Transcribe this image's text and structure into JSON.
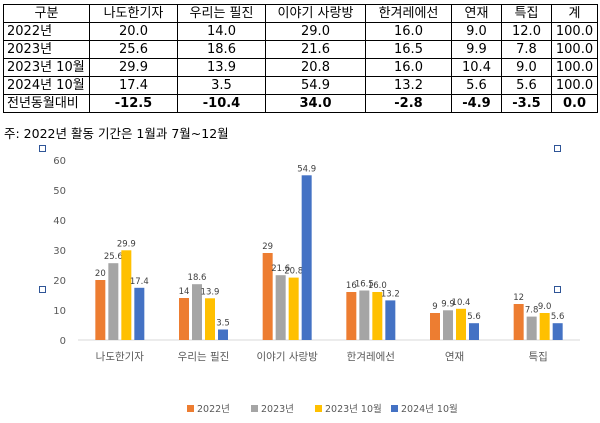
{
  "table": {
    "headers": [
      "구분",
      "나도한기자",
      "우리는 필진",
      "이야기 사랑방",
      "한겨레에선",
      "연재",
      "특집",
      "계"
    ],
    "rows": [
      {
        "label": "2022년",
        "values": [
          "20.0",
          "14.0",
          "29.0",
          "16.0",
          "9.0",
          "12.0",
          "100.0"
        ]
      },
      {
        "label": "2023년",
        "values": [
          "25.6",
          "18.6",
          "21.6",
          "16.5",
          "9.9",
          "7.8",
          "100.0"
        ]
      },
      {
        "label": "2023년 10월",
        "values": [
          "29.9",
          "13.9",
          "20.8",
          "16.0",
          "10.4",
          "9.0",
          "100.0"
        ]
      },
      {
        "label": "2024년 10월",
        "values": [
          "17.4",
          "3.5",
          "54.9",
          "13.2",
          "5.6",
          "5.6",
          "100.0"
        ]
      },
      {
        "label": "전년동월대비",
        "values": [
          "-12.5",
          "-10.4",
          "34.0",
          "-2.8",
          "-4.9",
          "-3.5",
          "0.0"
        ]
      }
    ]
  },
  "note": "주: 2022년 활동 기간은 1월과 7월~12월",
  "chart_data": {
    "type": "bar",
    "categories": [
      "나도한기자",
      "우리는 필진",
      "이야기 사랑방",
      "한겨레에선",
      "연재",
      "특집"
    ],
    "series": [
      {
        "name": "2022년",
        "color": "#ed7d31",
        "values": [
          20,
          14,
          29,
          16,
          9,
          12
        ],
        "labels": [
          "20",
          "14",
          "29",
          "16",
          "9",
          "12"
        ]
      },
      {
        "name": "2023년",
        "color": "#a5a5a5",
        "values": [
          25.6,
          18.6,
          21.6,
          16.5,
          9.9,
          7.8
        ],
        "labels": [
          "25.6",
          "18.6",
          "21.6",
          "16.5",
          "9.9",
          "7.8"
        ]
      },
      {
        "name": "2023년 10월",
        "color": "#ffc000",
        "values": [
          29.9,
          13.9,
          20.8,
          16.0,
          10.4,
          9.0
        ],
        "labels": [
          "29.9",
          "13.9",
          "20.8",
          "16.0",
          "10.4",
          "9.0"
        ]
      },
      {
        "name": "2024년 10월",
        "color": "#4472c4",
        "values": [
          17.4,
          3.5,
          54.9,
          13.2,
          5.6,
          5.6
        ],
        "labels": [
          "17.4",
          "3.5",
          "54.9",
          "13.2",
          "5.6",
          "5.6"
        ]
      }
    ],
    "ylim": [
      0,
      60
    ],
    "yticks": [
      "0",
      "10",
      "20",
      "30",
      "40",
      "50",
      "60"
    ],
    "grid": false,
    "legend": "bottom"
  }
}
